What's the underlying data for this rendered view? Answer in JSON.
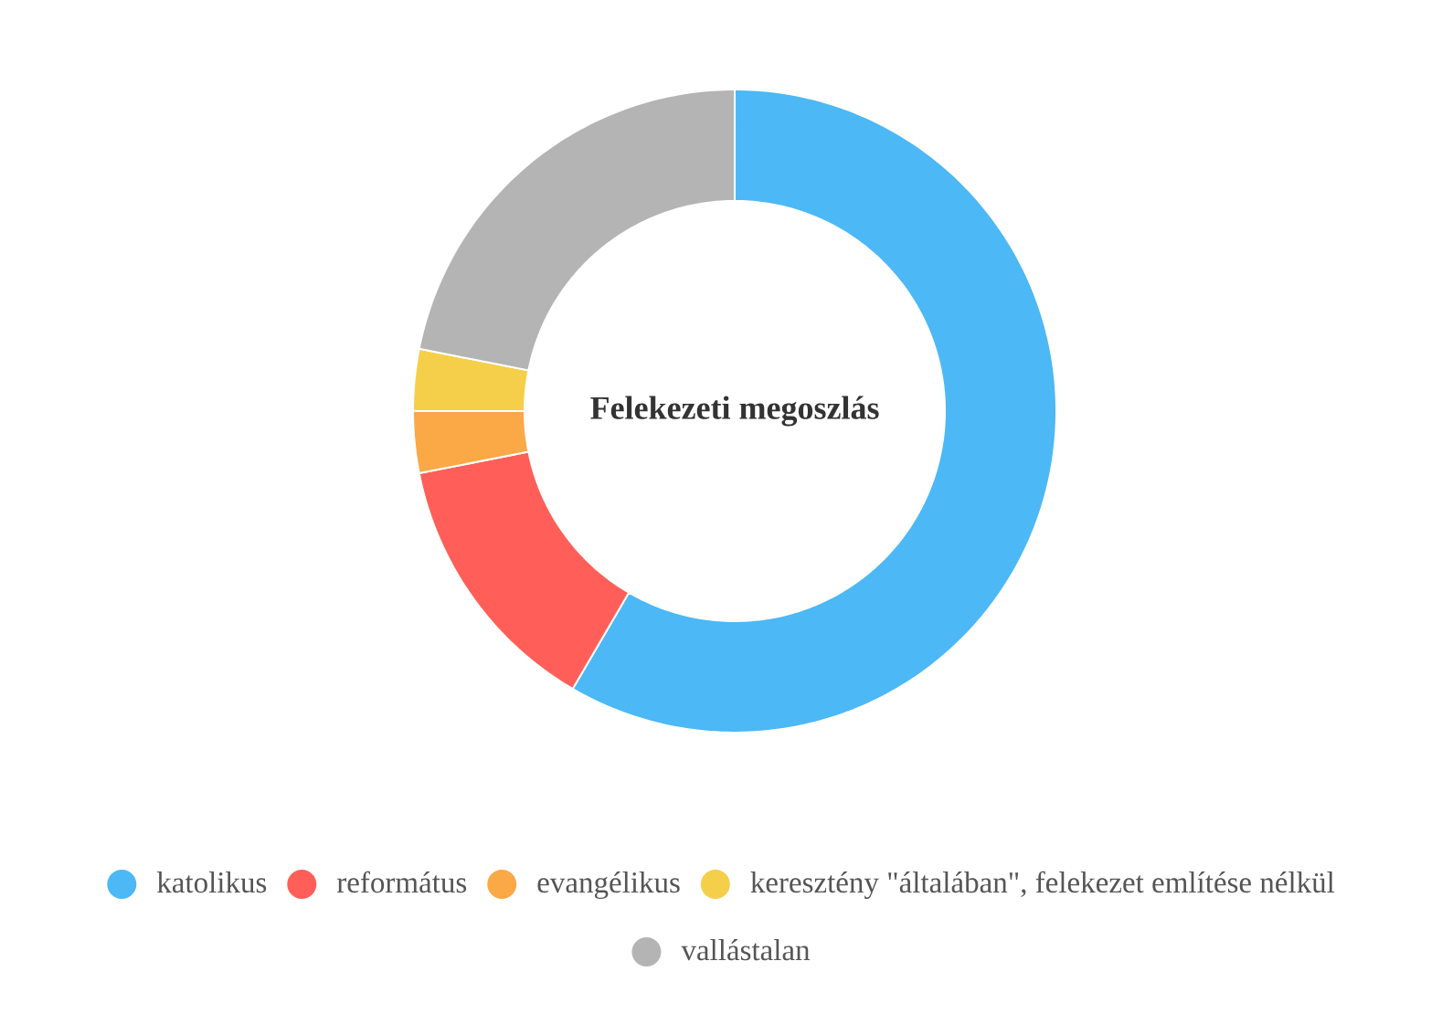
{
  "chart_data": {
    "type": "donut",
    "title": "Felekezeti megoszlás",
    "categories": [
      "katolikus",
      "református",
      "evangélikus",
      "keresztény \"általában\", felekezet említése nélkül",
      "vallástalan"
    ],
    "values": [
      58.4,
      13.5,
      3.1,
      3.1,
      21.9
    ],
    "colors": [
      "#4cb8f5",
      "#ff5f58",
      "#fba847",
      "#f5cf4a",
      "#b4b4b4"
    ],
    "legend": "bottom"
  }
}
